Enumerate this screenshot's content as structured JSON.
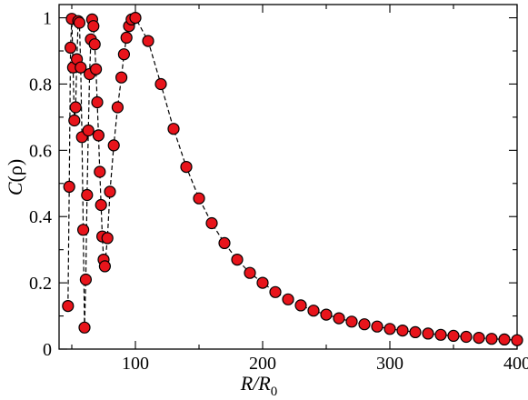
{
  "chart_data": {
    "type": "scatter",
    "title": "",
    "xlabel": "R/R0",
    "xlabel_main": "R/R",
    "xlabel_sub": "0",
    "ylabel": "C(ρ)",
    "ylabel_main": "C",
    "ylabel_paren": "(ρ)",
    "xlim": [
      40,
      400
    ],
    "ylim": [
      0,
      1.04
    ],
    "xticks_major": [
      100,
      200,
      300,
      400
    ],
    "xticks_minor": [
      50,
      150,
      250,
      350
    ],
    "yticks_major": [
      0,
      0.2,
      0.4,
      0.6,
      0.8,
      1.0
    ],
    "yticks_minor": [
      0.1,
      0.3,
      0.5,
      0.7,
      0.9
    ],
    "xtick_labels": [
      "100",
      "200",
      "300",
      "400"
    ],
    "ytick_labels": [
      "0",
      "0.2",
      "0.4",
      "0.6",
      "0.8",
      "1"
    ],
    "grid": false,
    "legend": "none",
    "marker_color": "#e8141b",
    "line_style": "dashed",
    "series": [
      {
        "points": [
          [
            47,
            0.13
          ],
          [
            48,
            0.49
          ],
          [
            49,
            0.91
          ],
          [
            50,
            0.997
          ],
          [
            51,
            0.85
          ],
          [
            52,
            0.69
          ],
          [
            53,
            0.73
          ],
          [
            54,
            0.875
          ],
          [
            55,
            0.99
          ],
          [
            56,
            0.985
          ],
          [
            57,
            0.85
          ],
          [
            58,
            0.64
          ],
          [
            59,
            0.36
          ],
          [
            60,
            0.065
          ],
          [
            61,
            0.21
          ],
          [
            62,
            0.465
          ],
          [
            63,
            0.66
          ],
          [
            64,
            0.83
          ],
          [
            65,
            0.935
          ],
          [
            66,
            0.995
          ],
          [
            67,
            0.975
          ],
          [
            68,
            0.92
          ],
          [
            69,
            0.845
          ],
          [
            70,
            0.745
          ],
          [
            71,
            0.645
          ],
          [
            72,
            0.535
          ],
          [
            73,
            0.435
          ],
          [
            74,
            0.34
          ],
          [
            75,
            0.27
          ],
          [
            76,
            0.25
          ],
          [
            78,
            0.335
          ],
          [
            80,
            0.475
          ],
          [
            83,
            0.615
          ],
          [
            86,
            0.73
          ],
          [
            89,
            0.82
          ],
          [
            91,
            0.89
          ],
          [
            93,
            0.94
          ],
          [
            95,
            0.975
          ],
          [
            97,
            0.995
          ],
          [
            100,
            1.0
          ],
          [
            110,
            0.93
          ],
          [
            120,
            0.8
          ],
          [
            130,
            0.665
          ],
          [
            140,
            0.55
          ],
          [
            150,
            0.455
          ],
          [
            160,
            0.38
          ],
          [
            170,
            0.32
          ],
          [
            180,
            0.27
          ],
          [
            190,
            0.23
          ],
          [
            200,
            0.2
          ],
          [
            210,
            0.172
          ],
          [
            220,
            0.15
          ],
          [
            230,
            0.132
          ],
          [
            240,
            0.116
          ],
          [
            250,
            0.104
          ],
          [
            260,
            0.093
          ],
          [
            270,
            0.083
          ],
          [
            280,
            0.075
          ],
          [
            290,
            0.068
          ],
          [
            300,
            0.061
          ],
          [
            310,
            0.056
          ],
          [
            320,
            0.051
          ],
          [
            330,
            0.047
          ],
          [
            340,
            0.043
          ],
          [
            350,
            0.04
          ],
          [
            360,
            0.037
          ],
          [
            370,
            0.034
          ],
          [
            380,
            0.031
          ],
          [
            390,
            0.029
          ],
          [
            400,
            0.027
          ]
        ]
      }
    ]
  }
}
